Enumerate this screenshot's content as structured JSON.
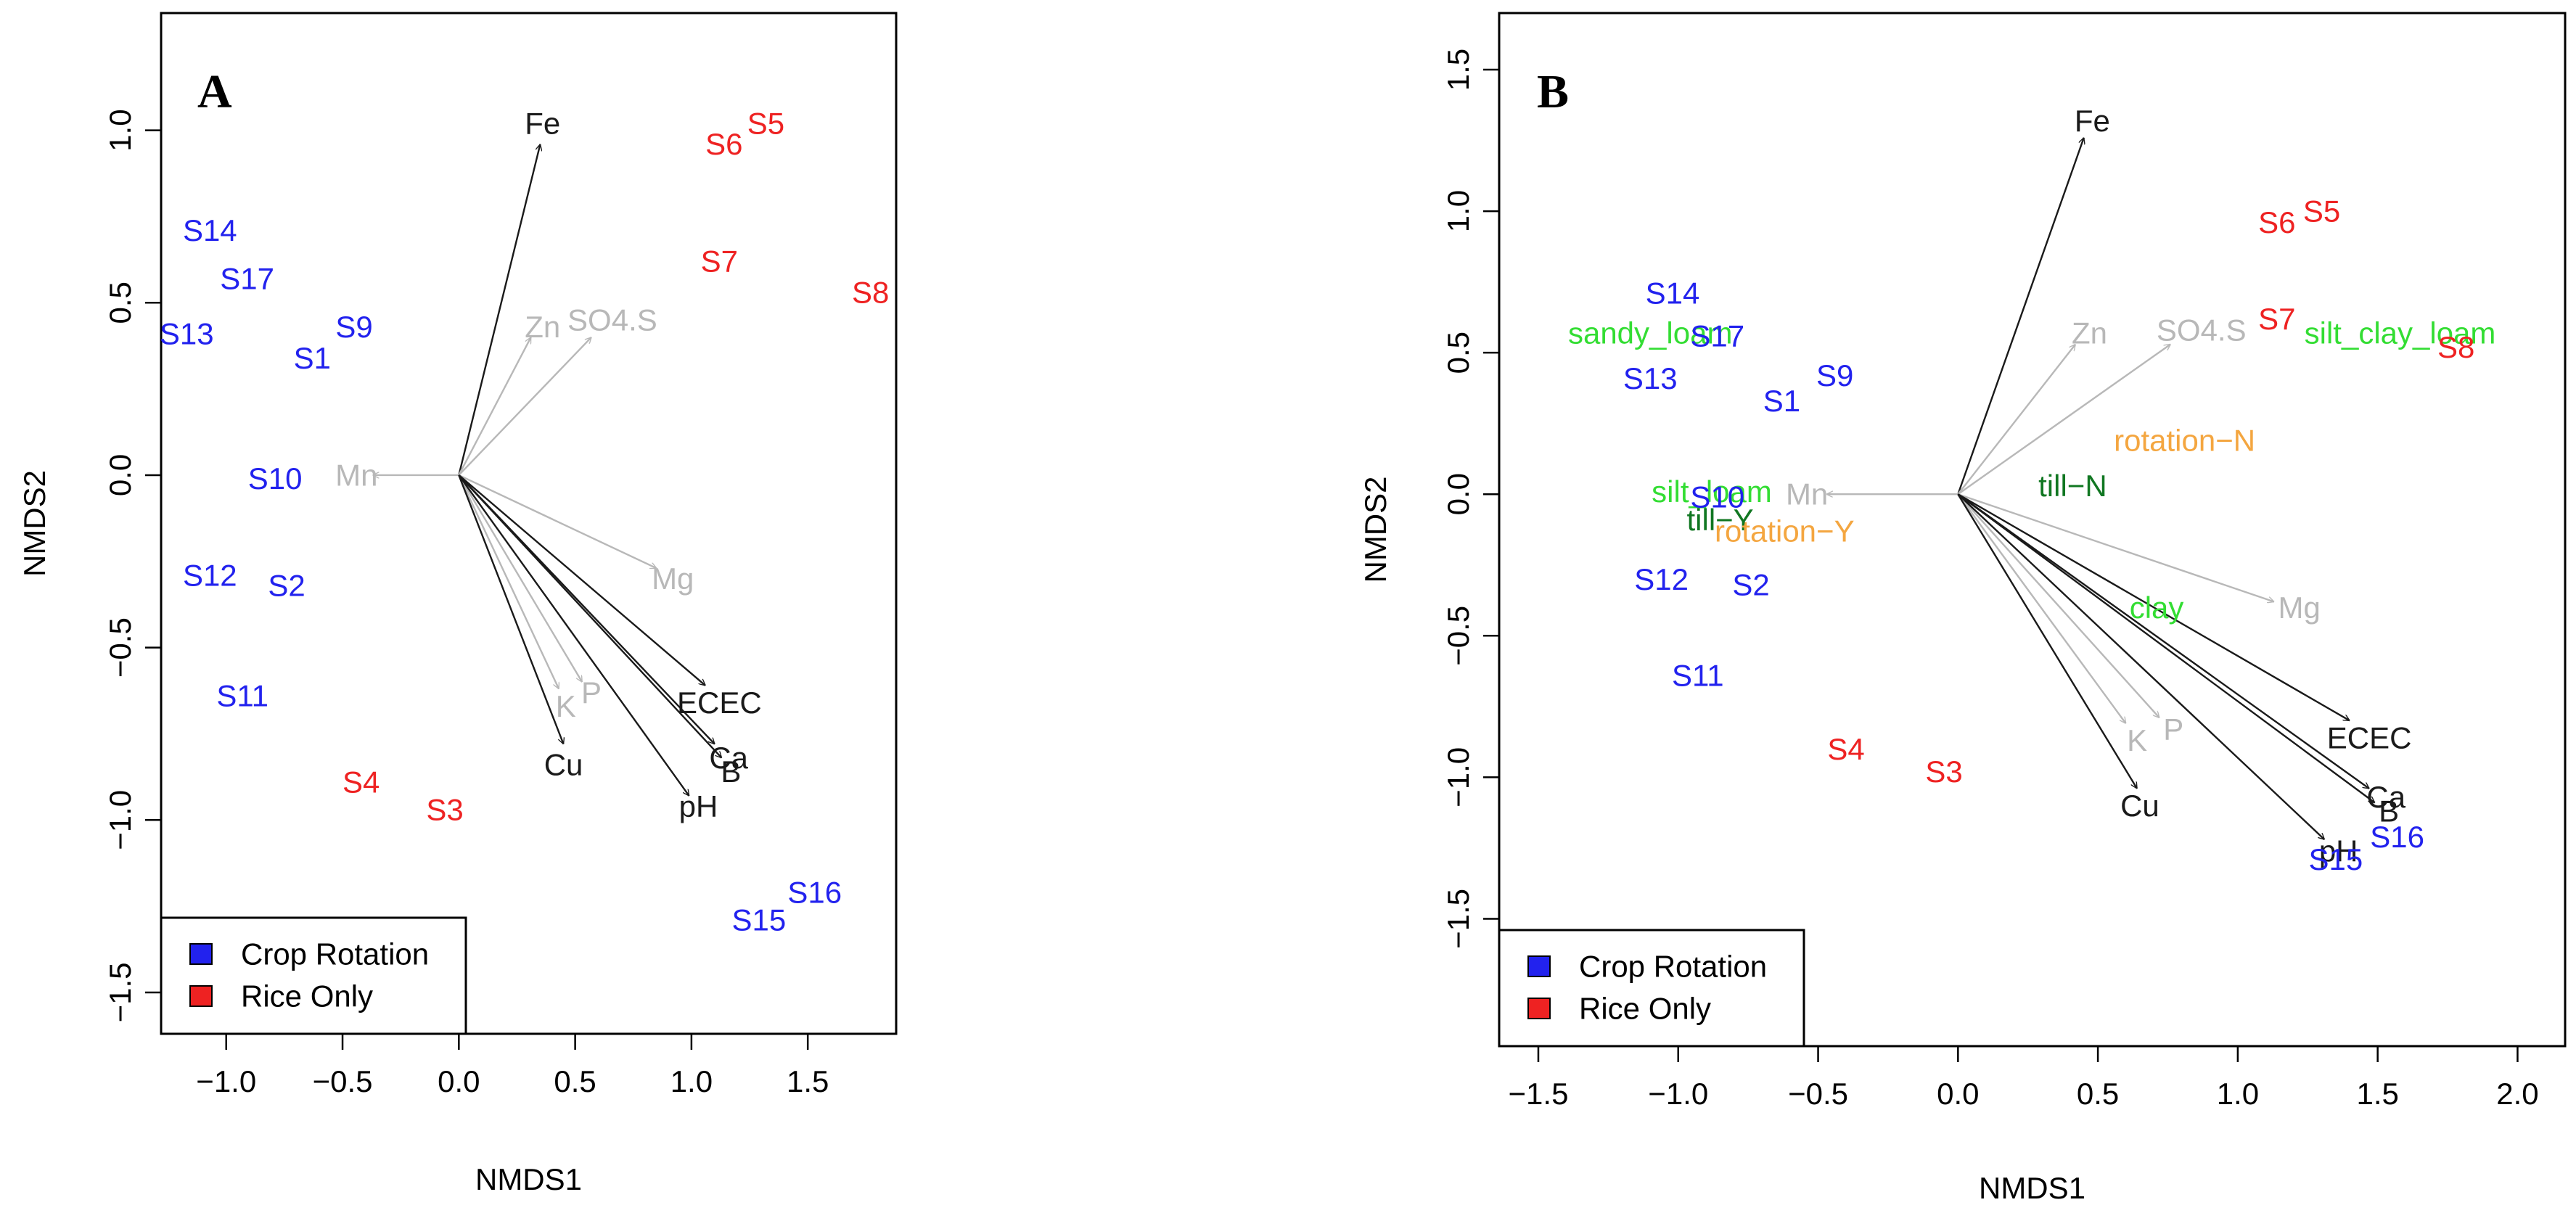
{
  "colors": {
    "crop_rotation": "#2222ee",
    "rice_only": "#ee2222",
    "significant_vector": "#1a1a1a",
    "nonsignificant_vector": "#b8b8b8",
    "soil_texture_factor": "#33dd33",
    "tillage_factor": "#117722",
    "rotation_factor": "#f4a640"
  },
  "chart_data": [
    {
      "type": "scatter",
      "panel_label": "A",
      "xlabel": "NMDS1",
      "ylabel": "NMDS2",
      "xlim": [
        -1.28,
        1.88
      ],
      "ylim": [
        -1.62,
        1.34
      ],
      "x_ticks": [
        -1.0,
        -0.5,
        0.0,
        0.5,
        1.0,
        1.5
      ],
      "y_ticks": [
        1.0,
        0.5,
        0.0,
        -0.5,
        -1.0,
        -1.5
      ],
      "x_tick_labels": [
        "−1.0",
        "−0.5",
        "0.0",
        "0.5",
        "1.0",
        "1.5"
      ],
      "y_tick_labels": [
        "1.0",
        "0.5",
        "0.0",
        "−0.5",
        "−1.0",
        "−1.5"
      ],
      "grid": false,
      "legend_position": "bottom-left",
      "legend": [
        {
          "label": "Crop Rotation",
          "group": "crop_rotation"
        },
        {
          "label": "Rice Only",
          "group": "rice_only"
        }
      ],
      "samples": [
        {
          "label": "S14",
          "x": -1.07,
          "y": 0.71,
          "group": "crop_rotation"
        },
        {
          "label": "S17",
          "x": -0.91,
          "y": 0.57,
          "group": "crop_rotation"
        },
        {
          "label": "S13",
          "x": -1.17,
          "y": 0.41,
          "group": "crop_rotation"
        },
        {
          "label": "S1",
          "x": -0.63,
          "y": 0.34,
          "group": "crop_rotation"
        },
        {
          "label": "S9",
          "x": -0.45,
          "y": 0.43,
          "group": "crop_rotation"
        },
        {
          "label": "S10",
          "x": -0.79,
          "y": -0.01,
          "group": "crop_rotation"
        },
        {
          "label": "S12",
          "x": -1.07,
          "y": -0.29,
          "group": "crop_rotation"
        },
        {
          "label": "S2",
          "x": -0.74,
          "y": -0.32,
          "group": "crop_rotation"
        },
        {
          "label": "S11",
          "x": -0.93,
          "y": -0.64,
          "group": "crop_rotation"
        },
        {
          "label": "S15",
          "x": 1.29,
          "y": -1.29,
          "group": "crop_rotation"
        },
        {
          "label": "S16",
          "x": 1.53,
          "y": -1.21,
          "group": "crop_rotation"
        },
        {
          "label": "S6",
          "x": 1.14,
          "y": 0.96,
          "group": "rice_only"
        },
        {
          "label": "S5",
          "x": 1.32,
          "y": 1.02,
          "group": "rice_only"
        },
        {
          "label": "S7",
          "x": 1.12,
          "y": 0.62,
          "group": "rice_only"
        },
        {
          "label": "S8",
          "x": 1.77,
          "y": 0.53,
          "group": "rice_only"
        },
        {
          "label": "S4",
          "x": -0.42,
          "y": -0.89,
          "group": "rice_only"
        },
        {
          "label": "S3",
          "x": -0.06,
          "y": -0.97,
          "group": "rice_only"
        }
      ],
      "vectors": [
        {
          "label": "Fe",
          "x": 0.35,
          "y": 0.96,
          "lx": 0.36,
          "ly": 1.02,
          "significant": true
        },
        {
          "label": "Zn",
          "x": 0.31,
          "y": 0.4,
          "lx": 0.36,
          "ly": 0.43,
          "significant": false
        },
        {
          "label": "SO4.S",
          "x": 0.57,
          "y": 0.4,
          "lx": 0.66,
          "ly": 0.45,
          "significant": false
        },
        {
          "label": "Mn",
          "x": -0.37,
          "y": 0.0,
          "lx": -0.44,
          "ly": 0.0,
          "significant": false
        },
        {
          "label": "Mg",
          "x": 0.85,
          "y": -0.27,
          "lx": 0.92,
          "ly": -0.3,
          "significant": false
        },
        {
          "label": "K",
          "x": 0.43,
          "y": -0.62,
          "lx": 0.46,
          "ly": -0.67,
          "significant": false
        },
        {
          "label": "P",
          "x": 0.53,
          "y": -0.6,
          "lx": 0.57,
          "ly": -0.63,
          "significant": false
        },
        {
          "label": "Cu",
          "x": 0.45,
          "y": -0.78,
          "lx": 0.45,
          "ly": -0.84,
          "significant": true
        },
        {
          "label": "ECEC",
          "x": 1.06,
          "y": -0.61,
          "lx": 1.12,
          "ly": -0.66,
          "significant": true
        },
        {
          "label": "Ca",
          "x": 1.1,
          "y": -0.78,
          "lx": 1.16,
          "ly": -0.82,
          "significant": true
        },
        {
          "label": "B",
          "x": 1.13,
          "y": -0.82,
          "lx": 1.17,
          "ly": -0.86,
          "significant": true
        },
        {
          "label": "pH",
          "x": 0.99,
          "y": -0.93,
          "lx": 1.03,
          "ly": -0.96,
          "significant": true
        }
      ]
    },
    {
      "type": "scatter",
      "panel_label": "B",
      "xlabel": "NMDS1",
      "ylabel": "NMDS2",
      "xlim": [
        -1.64,
        2.17
      ],
      "ylim": [
        -1.95,
        1.7
      ],
      "x_ticks": [
        -1.5,
        -1.0,
        -0.5,
        0.0,
        0.5,
        1.0,
        1.5,
        2.0
      ],
      "y_ticks": [
        1.5,
        1.0,
        0.5,
        0.0,
        -0.5,
        -1.0,
        -1.5
      ],
      "x_tick_labels": [
        "−1.5",
        "−1.0",
        "−0.5",
        "0.0",
        "0.5",
        "1.0",
        "1.5",
        "2.0"
      ],
      "y_tick_labels": [
        "1.5",
        "1.0",
        "0.5",
        "0.0",
        "−0.5",
        "−1.0",
        "−1.5"
      ],
      "grid": false,
      "legend_position": "bottom-left",
      "legend": [
        {
          "label": "Crop Rotation",
          "group": "crop_rotation"
        },
        {
          "label": "Rice Only",
          "group": "rice_only"
        }
      ],
      "samples": [
        {
          "label": "S14",
          "x": -1.02,
          "y": 0.71,
          "group": "crop_rotation"
        },
        {
          "label": "S17",
          "x": -0.86,
          "y": 0.56,
          "group": "crop_rotation"
        },
        {
          "label": "S13",
          "x": -1.1,
          "y": 0.41,
          "group": "crop_rotation"
        },
        {
          "label": "S1",
          "x": -0.63,
          "y": 0.33,
          "group": "crop_rotation"
        },
        {
          "label": "S9",
          "x": -0.44,
          "y": 0.42,
          "group": "crop_rotation"
        },
        {
          "label": "S10",
          "x": -0.86,
          "y": -0.01,
          "group": "crop_rotation"
        },
        {
          "label": "S12",
          "x": -1.06,
          "y": -0.3,
          "group": "crop_rotation"
        },
        {
          "label": "S2",
          "x": -0.74,
          "y": -0.32,
          "group": "crop_rotation"
        },
        {
          "label": "S11",
          "x": -0.93,
          "y": -0.64,
          "group": "crop_rotation"
        },
        {
          "label": "S15",
          "x": 1.35,
          "y": -1.29,
          "group": "crop_rotation"
        },
        {
          "label": "S16",
          "x": 1.57,
          "y": -1.21,
          "group": "crop_rotation"
        },
        {
          "label": "S6",
          "x": 1.14,
          "y": 0.96,
          "group": "rice_only"
        },
        {
          "label": "S5",
          "x": 1.3,
          "y": 1.0,
          "group": "rice_only"
        },
        {
          "label": "S7",
          "x": 1.14,
          "y": 0.62,
          "group": "rice_only"
        },
        {
          "label": "S8",
          "x": 1.78,
          "y": 0.52,
          "group": "rice_only"
        },
        {
          "label": "S4",
          "x": -0.4,
          "y": -0.9,
          "group": "rice_only"
        },
        {
          "label": "S3",
          "x": -0.05,
          "y": -0.98,
          "group": "rice_only"
        }
      ],
      "vectors": [
        {
          "label": "Fe",
          "x": 0.45,
          "y": 1.26,
          "lx": 0.48,
          "ly": 1.32,
          "significant": true
        },
        {
          "label": "Zn",
          "x": 0.42,
          "y": 0.53,
          "lx": 0.47,
          "ly": 0.57,
          "significant": false
        },
        {
          "label": "SO4.S",
          "x": 0.76,
          "y": 0.53,
          "lx": 0.87,
          "ly": 0.58,
          "significant": false
        },
        {
          "label": "Mn",
          "x": -0.47,
          "y": 0.0,
          "lx": -0.54,
          "ly": 0.0,
          "significant": false
        },
        {
          "label": "Mg",
          "x": 1.13,
          "y": -0.38,
          "lx": 1.22,
          "ly": -0.4,
          "significant": false
        },
        {
          "label": "K",
          "x": 0.6,
          "y": -0.81,
          "lx": 0.64,
          "ly": -0.87,
          "significant": false
        },
        {
          "label": "P",
          "x": 0.72,
          "y": -0.79,
          "lx": 0.77,
          "ly": -0.83,
          "significant": false
        },
        {
          "label": "Cu",
          "x": 0.64,
          "y": -1.04,
          "lx": 0.65,
          "ly": -1.1,
          "significant": true
        },
        {
          "label": "ECEC",
          "x": 1.4,
          "y": -0.8,
          "lx": 1.47,
          "ly": -0.86,
          "significant": true
        },
        {
          "label": "Ca",
          "x": 1.47,
          "y": -1.04,
          "lx": 1.53,
          "ly": -1.07,
          "significant": true
        },
        {
          "label": "B",
          "x": 1.49,
          "y": -1.09,
          "lx": 1.54,
          "ly": -1.12,
          "significant": true
        },
        {
          "label": "pH",
          "x": 1.31,
          "y": -1.22,
          "lx": 1.36,
          "ly": -1.26,
          "significant": true
        }
      ],
      "factors": [
        {
          "label": "sandy_loam",
          "x": -1.1,
          "y": 0.57,
          "group": "soil_texture_factor"
        },
        {
          "label": "silt_clay_loam",
          "x": 1.58,
          "y": 0.57,
          "group": "soil_texture_factor"
        },
        {
          "label": "silt_loam",
          "x": -0.88,
          "y": 0.01,
          "group": "soil_texture_factor"
        },
        {
          "label": "clay",
          "x": 0.71,
          "y": -0.4,
          "group": "soil_texture_factor"
        },
        {
          "label": "till−N",
          "x": 0.41,
          "y": 0.03,
          "group": "tillage_factor"
        },
        {
          "label": "till−Y",
          "x": -0.85,
          "y": -0.09,
          "group": "tillage_factor"
        },
        {
          "label": "rotation−N",
          "x": 0.81,
          "y": 0.19,
          "group": "rotation_factor"
        },
        {
          "label": "rotation−Y",
          "x": -0.62,
          "y": -0.13,
          "group": "rotation_factor"
        }
      ]
    }
  ]
}
